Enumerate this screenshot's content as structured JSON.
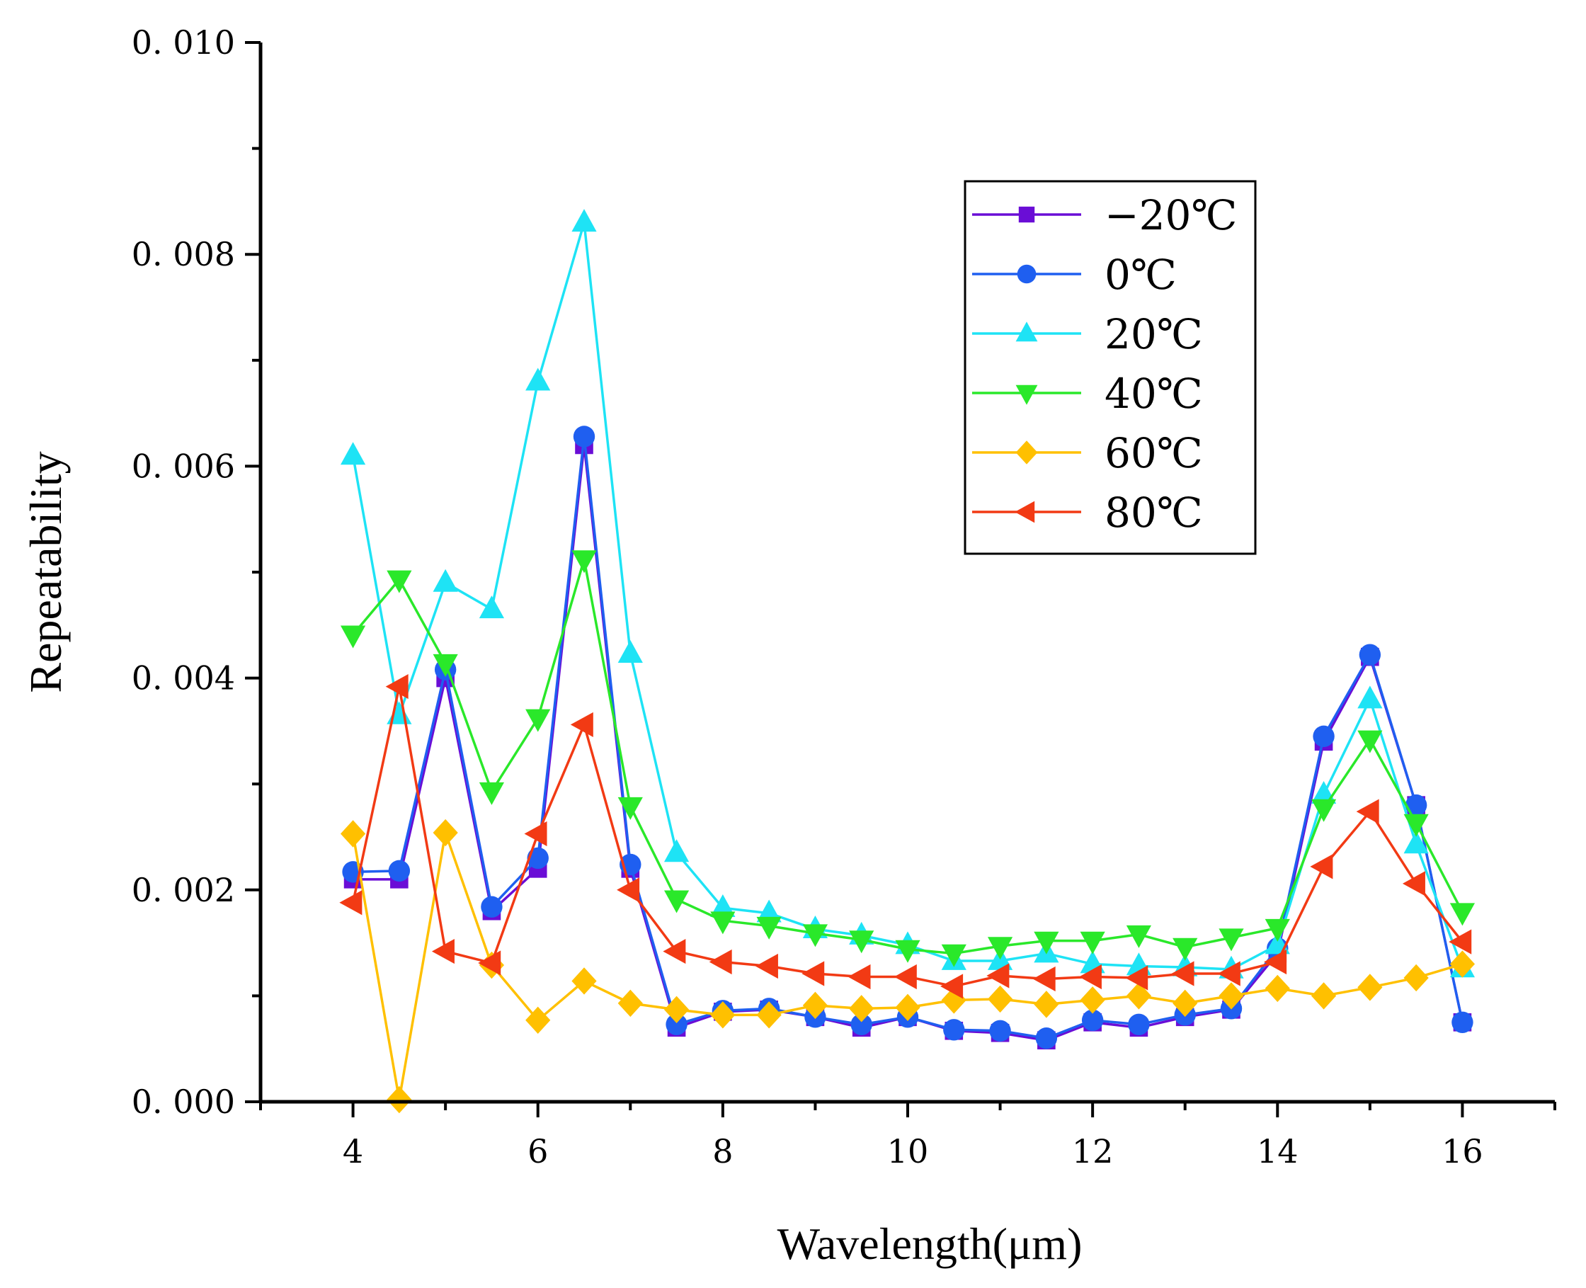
{
  "chart_data": {
    "type": "line",
    "title": "",
    "xlabel": "Wavelength(μm)",
    "ylabel": "Repeatability",
    "xlim": [
      3,
      17
    ],
    "ylim": [
      0,
      0.01
    ],
    "xticks": [
      4,
      6,
      8,
      10,
      12,
      14,
      16
    ],
    "xtick_labels": [
      "4",
      "6",
      "8",
      "10",
      "12",
      "14",
      "16"
    ],
    "yticks": [
      0,
      0.002,
      0.004,
      0.006,
      0.008,
      0.01
    ],
    "ytick_labels": [
      "0. 000",
      "0. 002",
      "0. 004",
      "0. 006",
      "0. 008",
      "0. 010"
    ],
    "grid": false,
    "legend_position": "top-right",
    "x": [
      4,
      4.5,
      5,
      5.5,
      6,
      6.5,
      7,
      7.5,
      8,
      8.5,
      9,
      9.5,
      10,
      10.5,
      11,
      11.5,
      12,
      12.5,
      13,
      13.5,
      14,
      14.5,
      15,
      15.5,
      16
    ],
    "series": [
      {
        "name": "−20℃",
        "color": "#6a0dd6",
        "marker": "square",
        "values": [
          0.0021,
          0.0021,
          0.004,
          0.0018,
          0.0022,
          0.0062,
          0.0022,
          0.0007,
          0.00085,
          0.00087,
          0.0008,
          0.0007,
          0.0008,
          0.00067,
          0.00065,
          0.00058,
          0.00075,
          0.0007,
          0.0008,
          0.00087,
          0.0014,
          0.0034,
          0.0042,
          0.0028,
          0.00075
        ]
      },
      {
        "name": "0℃",
        "color": "#1f5ff0",
        "marker": "circle",
        "values": [
          0.00217,
          0.00218,
          0.00408,
          0.00184,
          0.0023,
          0.00628,
          0.00224,
          0.00073,
          0.00086,
          0.00088,
          0.0008,
          0.00073,
          0.0008,
          0.00068,
          0.00067,
          0.0006,
          0.00077,
          0.00073,
          0.00082,
          0.00088,
          0.00145,
          0.00345,
          0.00422,
          0.0028,
          0.00075
        ]
      },
      {
        "name": "20℃",
        "color": "#1ee3f5",
        "marker": "triangle-up",
        "values": [
          0.0061,
          0.00365,
          0.0049,
          0.00465,
          0.0068,
          0.0083,
          0.00423,
          0.00235,
          0.00183,
          0.00178,
          0.00163,
          0.00157,
          0.00148,
          0.00133,
          0.00133,
          0.0014,
          0.0013,
          0.00128,
          0.00127,
          0.00125,
          0.00148,
          0.0029,
          0.0038,
          0.00243,
          0.00126
        ]
      },
      {
        "name": "40℃",
        "color": "#2ae82a",
        "marker": "triangle-down",
        "values": [
          0.00441,
          0.00493,
          0.00414,
          0.00293,
          0.00362,
          0.00512,
          0.00279,
          0.00191,
          0.00171,
          0.00166,
          0.00159,
          0.00153,
          0.00144,
          0.0014,
          0.00147,
          0.00152,
          0.00152,
          0.00158,
          0.00146,
          0.00155,
          0.00164,
          0.00277,
          0.00342,
          0.00263,
          0.00179
        ]
      },
      {
        "name": "60℃",
        "color": "#ffc000",
        "marker": "diamond",
        "values": [
          0.00253,
          2e-05,
          0.00254,
          0.00129,
          0.00077,
          0.00114,
          0.00093,
          0.00087,
          0.00082,
          0.00082,
          0.00091,
          0.00088,
          0.00089,
          0.00096,
          0.00097,
          0.00092,
          0.00096,
          0.001,
          0.00093,
          0.001,
          0.00107,
          0.001,
          0.00108,
          0.00117,
          0.0013
        ]
      },
      {
        "name": "80℃",
        "color": "#f23a14",
        "marker": "triangle-left",
        "values": [
          0.00188,
          0.00392,
          0.00142,
          0.00131,
          0.00253,
          0.00356,
          0.002,
          0.00142,
          0.00132,
          0.00128,
          0.00121,
          0.00118,
          0.00118,
          0.00109,
          0.00119,
          0.00116,
          0.00118,
          0.00117,
          0.00121,
          0.00121,
          0.00132,
          0.00222,
          0.00274,
          0.00206,
          0.00151
        ]
      }
    ]
  }
}
